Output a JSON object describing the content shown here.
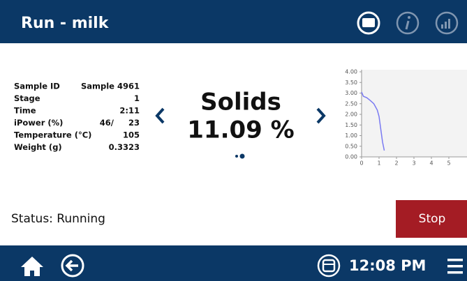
{
  "header": {
    "title": "Run - milk"
  },
  "sample_info": {
    "rows": [
      [
        "Sample ID",
        "Sample 4961"
      ],
      [
        "Stage",
        "1"
      ],
      [
        "Time",
        "2:11"
      ],
      [
        "iPower (%)",
        "46/",
        "23"
      ],
      [
        "Temperature (°C)",
        "105"
      ],
      [
        "Weight (g)",
        "0.3323"
      ]
    ]
  },
  "result": {
    "name": "Solids",
    "value": "11.09 %"
  },
  "status": "Status: Running",
  "stop_button": "Stop",
  "footer": {
    "time": "12:08 PM"
  },
  "chart_data": {
    "type": "line",
    "x": [
      0,
      0.1,
      0.3,
      0.5,
      0.7,
      0.9,
      1.0,
      1.1,
      1.2,
      1.3
    ],
    "series": [
      {
        "color": "#7a7af2",
        "values": [
          3.05,
          2.85,
          2.78,
          2.65,
          2.5,
          2.2,
          1.9,
          1.3,
          0.7,
          0.3
        ]
      }
    ],
    "xlim": [
      0,
      6
    ],
    "xticks": [
      0,
      1,
      2,
      3,
      4,
      5
    ],
    "ylim": [
      0,
      4
    ],
    "yticks": [
      {
        "value": 0,
        "label": "0.00"
      },
      {
        "value": 0.5,
        "label": "0.50"
      },
      {
        "value": 1,
        "label": "1.00"
      },
      {
        "value": 1.5,
        "label": "1.50"
      },
      {
        "value": 2,
        "label": "2.00"
      },
      {
        "value": 2.5,
        "label": "2.50"
      },
      {
        "value": 3,
        "label": "3.00"
      },
      {
        "value": 3.5,
        "label": "3.50"
      },
      {
        "value": 4,
        "label": "4.00"
      }
    ],
    "grid": false
  }
}
